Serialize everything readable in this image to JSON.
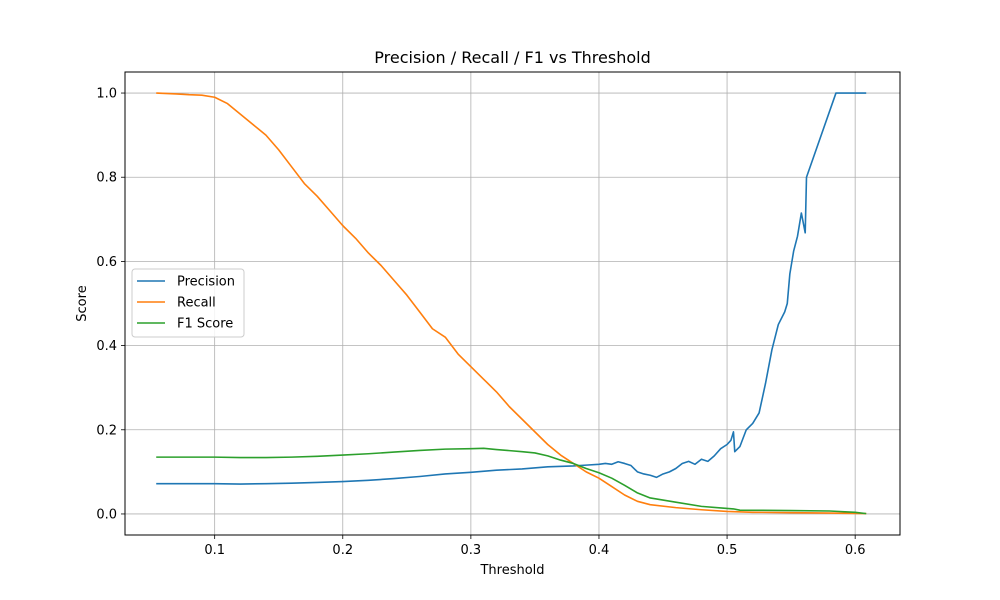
{
  "chart_data": {
    "type": "line",
    "title": "Precision / Recall / F1 vs Threshold",
    "xlabel": "Threshold",
    "ylabel": "Score",
    "xlim": [
      0.03,
      0.635
    ],
    "ylim": [
      -0.05,
      1.05
    ],
    "xticks": [
      0.1,
      0.2,
      0.3,
      0.4,
      0.5,
      0.6
    ],
    "yticks": [
      0.0,
      0.2,
      0.4,
      0.6,
      0.8,
      1.0
    ],
    "xtick_labels": [
      "0.1",
      "0.2",
      "0.3",
      "0.4",
      "0.5",
      "0.6"
    ],
    "ytick_labels": [
      "0.0",
      "0.2",
      "0.4",
      "0.6",
      "0.8",
      "1.0"
    ],
    "grid": true,
    "legend_position": "center-left",
    "series": [
      {
        "name": "Precision",
        "color": "#1f77b4",
        "points": [
          [
            0.055,
            0.072
          ],
          [
            0.08,
            0.072
          ],
          [
            0.1,
            0.072
          ],
          [
            0.12,
            0.071
          ],
          [
            0.14,
            0.072
          ],
          [
            0.16,
            0.073
          ],
          [
            0.18,
            0.075
          ],
          [
            0.2,
            0.077
          ],
          [
            0.22,
            0.08
          ],
          [
            0.24,
            0.084
          ],
          [
            0.26,
            0.089
          ],
          [
            0.28,
            0.095
          ],
          [
            0.3,
            0.099
          ],
          [
            0.32,
            0.104
          ],
          [
            0.34,
            0.107
          ],
          [
            0.36,
            0.112
          ],
          [
            0.38,
            0.114
          ],
          [
            0.39,
            0.116
          ],
          [
            0.4,
            0.118
          ],
          [
            0.405,
            0.12
          ],
          [
            0.41,
            0.118
          ],
          [
            0.415,
            0.124
          ],
          [
            0.42,
            0.12
          ],
          [
            0.425,
            0.115
          ],
          [
            0.43,
            0.1
          ],
          [
            0.435,
            0.095
          ],
          [
            0.44,
            0.092
          ],
          [
            0.445,
            0.087
          ],
          [
            0.45,
            0.095
          ],
          [
            0.455,
            0.1
          ],
          [
            0.46,
            0.108
          ],
          [
            0.465,
            0.12
          ],
          [
            0.47,
            0.125
          ],
          [
            0.475,
            0.118
          ],
          [
            0.48,
            0.13
          ],
          [
            0.485,
            0.125
          ],
          [
            0.49,
            0.138
          ],
          [
            0.495,
            0.155
          ],
          [
            0.5,
            0.165
          ],
          [
            0.503,
            0.175
          ],
          [
            0.505,
            0.195
          ],
          [
            0.506,
            0.148
          ],
          [
            0.51,
            0.16
          ],
          [
            0.515,
            0.2
          ],
          [
            0.52,
            0.215
          ],
          [
            0.525,
            0.24
          ],
          [
            0.53,
            0.31
          ],
          [
            0.535,
            0.39
          ],
          [
            0.54,
            0.45
          ],
          [
            0.545,
            0.48
          ],
          [
            0.547,
            0.5
          ],
          [
            0.549,
            0.57
          ],
          [
            0.552,
            0.625
          ],
          [
            0.555,
            0.66
          ],
          [
            0.558,
            0.715
          ],
          [
            0.561,
            0.668
          ],
          [
            0.562,
            0.8
          ],
          [
            0.585,
            1.0
          ],
          [
            0.608,
            1.0
          ]
        ]
      },
      {
        "name": "Recall",
        "color": "#ff7f0e",
        "points": [
          [
            0.055,
            1.0
          ],
          [
            0.07,
            0.998
          ],
          [
            0.08,
            0.996
          ],
          [
            0.09,
            0.995
          ],
          [
            0.1,
            0.99
          ],
          [
            0.11,
            0.975
          ],
          [
            0.12,
            0.95
          ],
          [
            0.13,
            0.925
          ],
          [
            0.14,
            0.9
          ],
          [
            0.15,
            0.865
          ],
          [
            0.16,
            0.825
          ],
          [
            0.17,
            0.785
          ],
          [
            0.18,
            0.755
          ],
          [
            0.19,
            0.72
          ],
          [
            0.2,
            0.685
          ],
          [
            0.21,
            0.655
          ],
          [
            0.22,
            0.62
          ],
          [
            0.23,
            0.59
          ],
          [
            0.24,
            0.555
          ],
          [
            0.25,
            0.52
          ],
          [
            0.26,
            0.48
          ],
          [
            0.27,
            0.44
          ],
          [
            0.28,
            0.42
          ],
          [
            0.29,
            0.38
          ],
          [
            0.3,
            0.35
          ],
          [
            0.31,
            0.32
          ],
          [
            0.32,
            0.29
          ],
          [
            0.33,
            0.255
          ],
          [
            0.34,
            0.225
          ],
          [
            0.35,
            0.195
          ],
          [
            0.36,
            0.165
          ],
          [
            0.37,
            0.14
          ],
          [
            0.38,
            0.12
          ],
          [
            0.39,
            0.1
          ],
          [
            0.4,
            0.085
          ],
          [
            0.41,
            0.065
          ],
          [
            0.42,
            0.045
          ],
          [
            0.43,
            0.03
          ],
          [
            0.44,
            0.022
          ],
          [
            0.46,
            0.015
          ],
          [
            0.48,
            0.01
          ],
          [
            0.5,
            0.006
          ],
          [
            0.52,
            0.004
          ],
          [
            0.55,
            0.003
          ],
          [
            0.58,
            0.002
          ],
          [
            0.608,
            0.001
          ]
        ]
      },
      {
        "name": "F1 Score",
        "color": "#2ca02c",
        "points": [
          [
            0.055,
            0.135
          ],
          [
            0.08,
            0.135
          ],
          [
            0.1,
            0.135
          ],
          [
            0.12,
            0.134
          ],
          [
            0.14,
            0.134
          ],
          [
            0.16,
            0.135
          ],
          [
            0.18,
            0.137
          ],
          [
            0.2,
            0.14
          ],
          [
            0.22,
            0.143
          ],
          [
            0.24,
            0.147
          ],
          [
            0.26,
            0.151
          ],
          [
            0.28,
            0.154
          ],
          [
            0.3,
            0.155
          ],
          [
            0.31,
            0.156
          ],
          [
            0.32,
            0.153
          ],
          [
            0.34,
            0.148
          ],
          [
            0.35,
            0.145
          ],
          [
            0.36,
            0.138
          ],
          [
            0.37,
            0.128
          ],
          [
            0.38,
            0.12
          ],
          [
            0.39,
            0.108
          ],
          [
            0.4,
            0.098
          ],
          [
            0.41,
            0.085
          ],
          [
            0.42,
            0.068
          ],
          [
            0.43,
            0.05
          ],
          [
            0.44,
            0.038
          ],
          [
            0.46,
            0.028
          ],
          [
            0.48,
            0.018
          ],
          [
            0.5,
            0.013
          ],
          [
            0.505,
            0.012
          ],
          [
            0.51,
            0.009
          ],
          [
            0.55,
            0.008
          ],
          [
            0.58,
            0.007
          ],
          [
            0.6,
            0.004
          ],
          [
            0.608,
            0.001
          ]
        ]
      }
    ]
  }
}
